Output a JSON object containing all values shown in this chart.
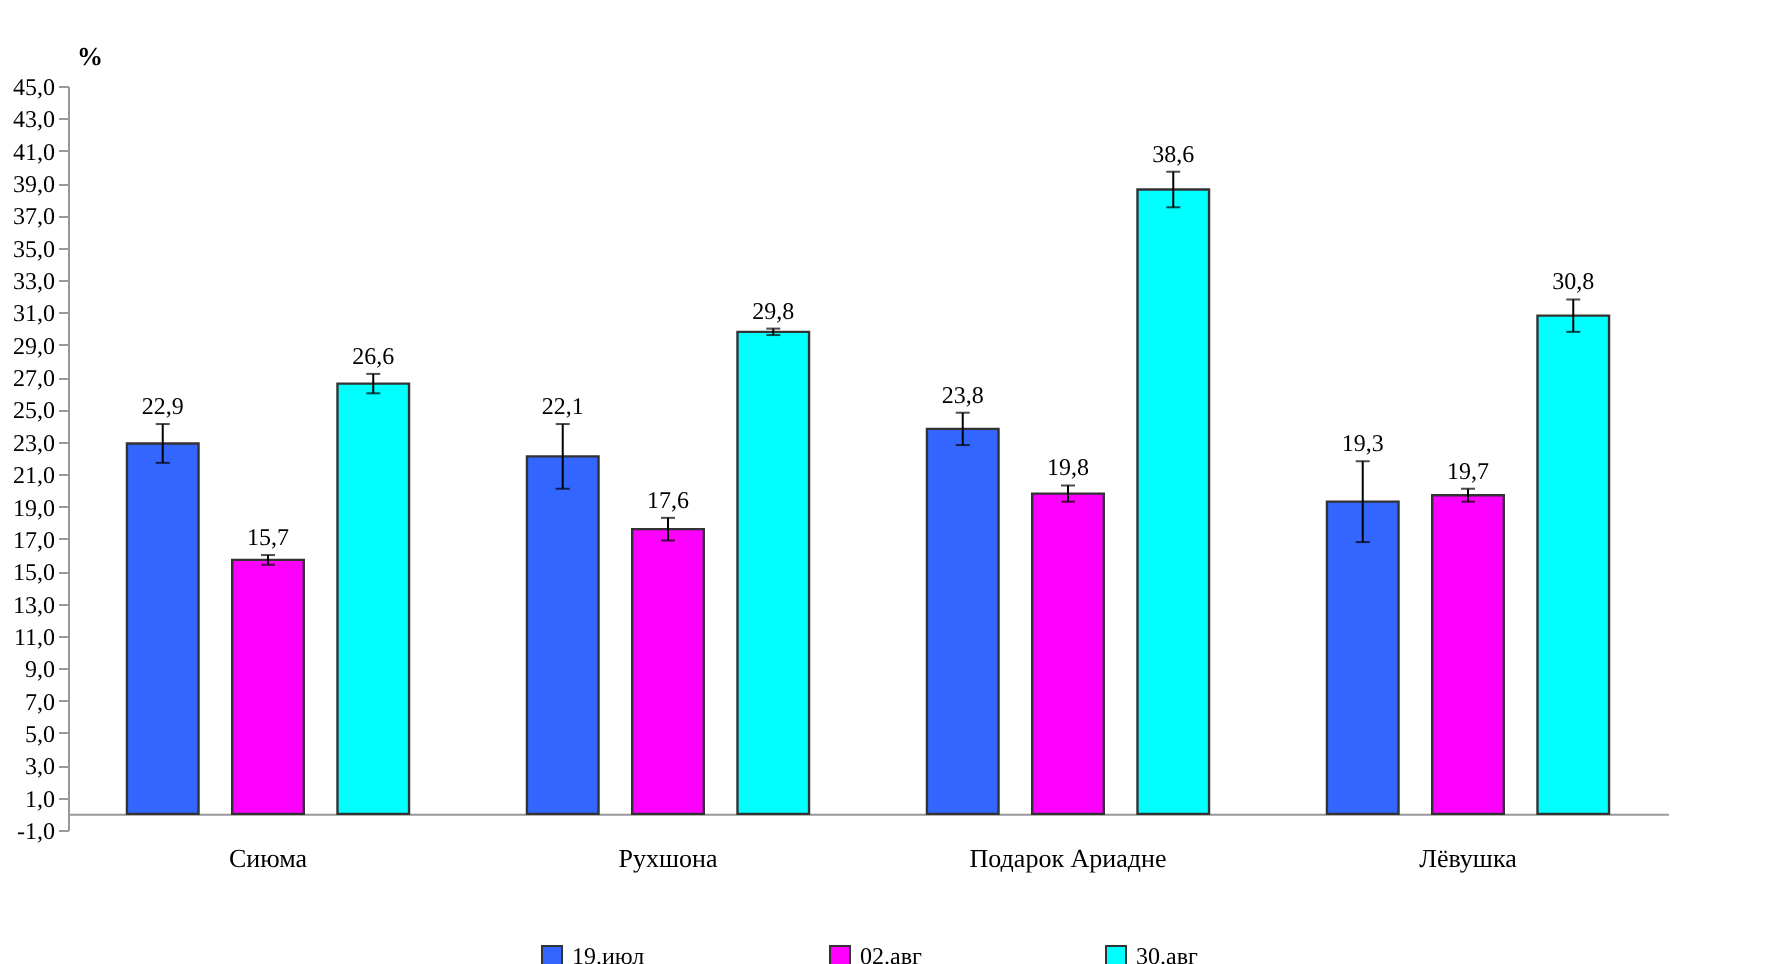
{
  "chart_data": {
    "type": "bar",
    "ylabel": "%",
    "categories": [
      "Сиюма",
      "Рухшона",
      "Подарок Ариадне",
      "Лёвушка"
    ],
    "series": [
      {
        "name": "19.июл",
        "color": "#3366ff",
        "values": [
          22.9,
          22.1,
          23.8,
          19.3
        ],
        "errors": [
          1.2,
          2.0,
          1.0,
          2.5
        ],
        "value_labels": [
          "22,9",
          "22,1",
          "23,8",
          "19,3"
        ]
      },
      {
        "name": "02.авг",
        "color": "#ff00ff",
        "values": [
          15.7,
          17.6,
          19.8,
          19.7
        ],
        "errors": [
          0.3,
          0.7,
          0.5,
          0.4
        ],
        "value_labels": [
          "15,7",
          "17,6",
          "19,8",
          "19,7"
        ]
      },
      {
        "name": "30.авг",
        "color": "#00ffff",
        "values": [
          26.6,
          29.8,
          38.6,
          30.8
        ],
        "errors": [
          0.6,
          0.2,
          1.1,
          1.0
        ],
        "value_labels": [
          "26,6",
          "29,8",
          "38,6",
          "30,8"
        ]
      }
    ],
    "ylim": [
      -1,
      45
    ],
    "yticks": [
      {
        "value": -1,
        "label": "-1,0"
      },
      {
        "value": 1,
        "label": "1,0"
      },
      {
        "value": 3,
        "label": "3,0"
      },
      {
        "value": 5,
        "label": "5,0"
      },
      {
        "value": 7,
        "label": "7,0"
      },
      {
        "value": 9,
        "label": "9,0"
      },
      {
        "value": 11,
        "label": "11,0"
      },
      {
        "value": 13,
        "label": "13,0"
      },
      {
        "value": 15,
        "label": "15,0"
      },
      {
        "value": 17,
        "label": "17,0"
      },
      {
        "value": 19,
        "label": "19,0"
      },
      {
        "value": 21,
        "label": "21,0"
      },
      {
        "value": 23,
        "label": "23,0"
      },
      {
        "value": 25,
        "label": "25,0"
      },
      {
        "value": 27,
        "label": "27,0"
      },
      {
        "value": 29,
        "label": "29,0"
      },
      {
        "value": 31,
        "label": "31,0"
      },
      {
        "value": 33,
        "label": "33,0"
      },
      {
        "value": 35,
        "label": "35,0"
      },
      {
        "value": 37,
        "label": "37,0"
      },
      {
        "value": 39,
        "label": "39,0"
      },
      {
        "value": 41,
        "label": "41,0"
      },
      {
        "value": 43,
        "label": "43,0"
      },
      {
        "value": 45,
        "label": "45,0"
      }
    ],
    "grid": false,
    "legend": "bottom"
  }
}
